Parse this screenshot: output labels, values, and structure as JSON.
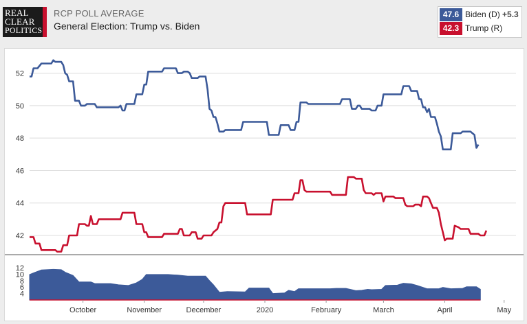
{
  "header": {
    "logo": {
      "line1": "REAL",
      "line2": "CLEAR",
      "line3": "POLITICS"
    },
    "supertitle": "RCP POLL AVERAGE",
    "title": "General Election: Trump vs. Biden"
  },
  "legend": [
    {
      "value": "47.6",
      "name": "Biden (D)",
      "spread": "+5.3",
      "color": "#3c5a99"
    },
    {
      "value": "42.3",
      "name": "Trump (R)",
      "spread": "",
      "color": "#c8102e"
    }
  ],
  "chart_data": {
    "type": "line",
    "title": "General Election: Trump vs. Biden",
    "x_unit": "days since Sep 4, 2019 (0 = Sep 4, 2019; 240 ≈ May 1, 2020)",
    "x_range": [
      0,
      246
    ],
    "month_labels": [
      {
        "label": "October",
        "x": 27
      },
      {
        "label": "November",
        "x": 58
      },
      {
        "label": "December",
        "x": 88
      },
      {
        "label": "2020",
        "x": 119
      },
      {
        "label": "February",
        "x": 150
      },
      {
        "label": "March",
        "x": 179
      },
      {
        "label": "April",
        "x": 210
      },
      {
        "label": "May",
        "x": 240
      }
    ],
    "main_panel": {
      "y_ticks": [
        42,
        44,
        46,
        48,
        50,
        52
      ],
      "ylim": [
        40.9,
        53.0
      ],
      "grid": true,
      "series": [
        {
          "name": "Biden (D)",
          "color": "#3c5a99",
          "points": [
            [
              0,
              51.8
            ],
            [
              1,
              51.8
            ],
            [
              2,
              52.3
            ],
            [
              4,
              52.3
            ],
            [
              6,
              52.6
            ],
            [
              11,
              52.6
            ],
            [
              12,
              52.8
            ],
            [
              13,
              52.7
            ],
            [
              16,
              52.7
            ],
            [
              17,
              52.5
            ],
            [
              18,
              52.0
            ],
            [
              19,
              51.9
            ],
            [
              20,
              51.5
            ],
            [
              22,
              51.5
            ],
            [
              23,
              50.3
            ],
            [
              25,
              50.3
            ],
            [
              26,
              50.0
            ],
            [
              28,
              50.0
            ],
            [
              29,
              50.1
            ],
            [
              33,
              50.1
            ],
            [
              34,
              49.9
            ],
            [
              45,
              49.9
            ],
            [
              46,
              50.0
            ],
            [
              47,
              49.7
            ],
            [
              48,
              49.7
            ],
            [
              49,
              50.1
            ],
            [
              53,
              50.1
            ],
            [
              54,
              50.7
            ],
            [
              57,
              50.7
            ],
            [
              58,
              51.3
            ],
            [
              59,
              51.3
            ],
            [
              60,
              52.1
            ],
            [
              67,
              52.1
            ],
            [
              68,
              52.3
            ],
            [
              74,
              52.3
            ],
            [
              75,
              52.0
            ],
            [
              77,
              52.0
            ],
            [
              78,
              52.1
            ],
            [
              80,
              52.1
            ],
            [
              81,
              52.0
            ],
            [
              82,
              51.7
            ],
            [
              85,
              51.7
            ],
            [
              86,
              51.8
            ],
            [
              89,
              51.8
            ],
            [
              90,
              51.0
            ],
            [
              91,
              49.8
            ],
            [
              92,
              49.7
            ],
            [
              93,
              49.3
            ],
            [
              94,
              49.3
            ],
            [
              95,
              48.9
            ],
            [
              96,
              48.4
            ],
            [
              98,
              48.4
            ],
            [
              99,
              48.5
            ],
            [
              107,
              48.5
            ],
            [
              108,
              49.0
            ],
            [
              120,
              49.0
            ],
            [
              121,
              48.2
            ],
            [
              126,
              48.2
            ],
            [
              127,
              48.8
            ],
            [
              131,
              48.8
            ],
            [
              132,
              48.5
            ],
            [
              134,
              48.5
            ],
            [
              135,
              49.0
            ],
            [
              136,
              49.0
            ],
            [
              137,
              50.2
            ],
            [
              140,
              50.2
            ],
            [
              141,
              50.1
            ],
            [
              157,
              50.1
            ],
            [
              158,
              50.4
            ],
            [
              162,
              50.4
            ],
            [
              163,
              49.8
            ],
            [
              165,
              49.8
            ],
            [
              166,
              50.0
            ],
            [
              167,
              50.0
            ],
            [
              168,
              49.8
            ],
            [
              172,
              49.8
            ],
            [
              173,
              49.7
            ],
            [
              175,
              49.7
            ],
            [
              176,
              50.0
            ],
            [
              178,
              50.0
            ],
            [
              179,
              50.7
            ],
            [
              188,
              50.7
            ],
            [
              189,
              51.2
            ],
            [
              192,
              51.2
            ],
            [
              193,
              50.9
            ],
            [
              196,
              50.9
            ],
            [
              197,
              50.4
            ],
            [
              198,
              50.4
            ],
            [
              199,
              49.9
            ],
            [
              200,
              49.9
            ],
            [
              201,
              49.6
            ],
            [
              202,
              49.8
            ],
            [
              203,
              49.3
            ],
            [
              205,
              49.3
            ],
            [
              206,
              48.9
            ],
            [
              207,
              48.4
            ],
            [
              208,
              48.1
            ],
            [
              209,
              47.3
            ],
            [
              213,
              47.3
            ],
            [
              214,
              48.3
            ],
            [
              218,
              48.3
            ],
            [
              219,
              48.4
            ],
            [
              223,
              48.4
            ],
            [
              225,
              48.2
            ],
            [
              226,
              47.4
            ],
            [
              227,
              47.6
            ]
          ]
        },
        {
          "name": "Trump (R)",
          "color": "#c8102e",
          "points": [
            [
              0,
              41.9
            ],
            [
              2,
              41.9
            ],
            [
              3,
              41.5
            ],
            [
              5,
              41.5
            ],
            [
              6,
              41.1
            ],
            [
              13,
              41.1
            ],
            [
              14,
              41.0
            ],
            [
              16,
              41.0
            ],
            [
              17,
              41.4
            ],
            [
              19,
              41.4
            ],
            [
              20,
              42.0
            ],
            [
              24,
              42.0
            ],
            [
              25,
              42.7
            ],
            [
              28,
              42.7
            ],
            [
              29,
              42.6
            ],
            [
              30,
              42.6
            ],
            [
              31,
              43.2
            ],
            [
              32,
              42.7
            ],
            [
              34,
              42.7
            ],
            [
              35,
              43.0
            ],
            [
              46,
              43.0
            ],
            [
              47,
              43.4
            ],
            [
              53,
              43.4
            ],
            [
              54,
              42.7
            ],
            [
              57,
              42.7
            ],
            [
              58,
              42.2
            ],
            [
              59,
              42.2
            ],
            [
              60,
              41.9
            ],
            [
              67,
              41.9
            ],
            [
              68,
              42.1
            ],
            [
              75,
              42.1
            ],
            [
              76,
              42.4
            ],
            [
              77,
              42.4
            ],
            [
              78,
              42.0
            ],
            [
              81,
              42.0
            ],
            [
              82,
              42.2
            ],
            [
              84,
              42.2
            ],
            [
              85,
              41.8
            ],
            [
              87,
              41.8
            ],
            [
              88,
              42.0
            ],
            [
              92,
              42.0
            ],
            [
              93,
              42.2
            ],
            [
              94,
              42.3
            ],
            [
              95,
              42.4
            ],
            [
              96,
              42.8
            ],
            [
              97,
              42.8
            ],
            [
              98,
              43.8
            ],
            [
              99,
              44.0
            ],
            [
              109,
              44.0
            ],
            [
              110,
              43.3
            ],
            [
              122,
              43.3
            ],
            [
              123,
              44.2
            ],
            [
              133,
              44.2
            ],
            [
              134,
              44.6
            ],
            [
              136,
              44.6
            ],
            [
              137,
              45.4
            ],
            [
              138,
              45.4
            ],
            [
              139,
              44.8
            ],
            [
              140,
              44.7
            ],
            [
              152,
              44.7
            ],
            [
              153,
              44.5
            ],
            [
              160,
              44.5
            ],
            [
              161,
              45.6
            ],
            [
              164,
              45.6
            ],
            [
              165,
              45.5
            ],
            [
              168,
              45.5
            ],
            [
              169,
              44.8
            ],
            [
              170,
              44.6
            ],
            [
              173,
              44.6
            ],
            [
              174,
              44.5
            ],
            [
              175,
              44.6
            ],
            [
              178,
              44.6
            ],
            [
              179,
              44.1
            ],
            [
              180,
              44.4
            ],
            [
              184,
              44.4
            ],
            [
              185,
              44.3
            ],
            [
              189,
              44.3
            ],
            [
              190,
              43.9
            ],
            [
              191,
              43.8
            ],
            [
              194,
              43.8
            ],
            [
              195,
              43.9
            ],
            [
              197,
              43.9
            ],
            [
              198,
              43.8
            ],
            [
              199,
              44.4
            ],
            [
              201,
              44.4
            ],
            [
              202,
              44.3
            ],
            [
              203,
              44.0
            ],
            [
              204,
              43.7
            ],
            [
              206,
              43.7
            ],
            [
              207,
              43.4
            ],
            [
              208,
              42.7
            ],
            [
              209,
              42.2
            ],
            [
              210,
              41.7
            ],
            [
              211,
              41.8
            ],
            [
              214,
              41.8
            ],
            [
              215,
              42.6
            ],
            [
              217,
              42.5
            ],
            [
              218,
              42.4
            ],
            [
              222,
              42.4
            ],
            [
              223,
              42.1
            ],
            [
              227,
              42.1
            ],
            [
              228,
              42.0
            ],
            [
              230,
              42.0
            ],
            [
              231,
              42.3
            ]
          ]
        }
      ]
    },
    "spread_panel": {
      "type": "area",
      "name": "Spread",
      "color": "#3c5a99",
      "baseline_color": "#c8102e",
      "y_ticks": [
        4,
        6,
        8,
        10,
        12
      ],
      "ylim": [
        2,
        13.5
      ],
      "points": [
        [
          0,
          9.9
        ],
        [
          2,
          10.4
        ],
        [
          6,
          11.3
        ],
        [
          12,
          11.5
        ],
        [
          16,
          11.4
        ],
        [
          18,
          10.6
        ],
        [
          22,
          9.6
        ],
        [
          25,
          7.6
        ],
        [
          31,
          7.6
        ],
        [
          33,
          7.1
        ],
        [
          41,
          7.1
        ],
        [
          45,
          6.7
        ],
        [
          50,
          6.5
        ],
        [
          54,
          7.3
        ],
        [
          57,
          8.4
        ],
        [
          59,
          9.9
        ],
        [
          70,
          9.9
        ],
        [
          75,
          9.7
        ],
        [
          80,
          9.4
        ],
        [
          89,
          9.4
        ],
        [
          91,
          8.0
        ],
        [
          93,
          6.7
        ],
        [
          96,
          4.4
        ],
        [
          100,
          4.6
        ],
        [
          109,
          4.5
        ],
        [
          111,
          5.7
        ],
        [
          121,
          5.7
        ],
        [
          123,
          4.0
        ],
        [
          129,
          4.2
        ],
        [
          131,
          5.0
        ],
        [
          134,
          4.6
        ],
        [
          136,
          5.5
        ],
        [
          139,
          5.5
        ],
        [
          145,
          5.5
        ],
        [
          152,
          5.5
        ],
        [
          155,
          5.6
        ],
        [
          160,
          5.6
        ],
        [
          165,
          4.9
        ],
        [
          168,
          5.0
        ],
        [
          171,
          5.3
        ],
        [
          173,
          5.2
        ],
        [
          178,
          5.3
        ],
        [
          180,
          6.5
        ],
        [
          186,
          6.6
        ],
        [
          189,
          7.2
        ],
        [
          193,
          7.0
        ],
        [
          196,
          6.5
        ],
        [
          201,
          5.5
        ],
        [
          207,
          5.5
        ],
        [
          209,
          5.9
        ],
        [
          213,
          5.5
        ],
        [
          219,
          5.6
        ],
        [
          221,
          6.1
        ],
        [
          226,
          6.1
        ],
        [
          228,
          5.3
        ]
      ]
    }
  }
}
